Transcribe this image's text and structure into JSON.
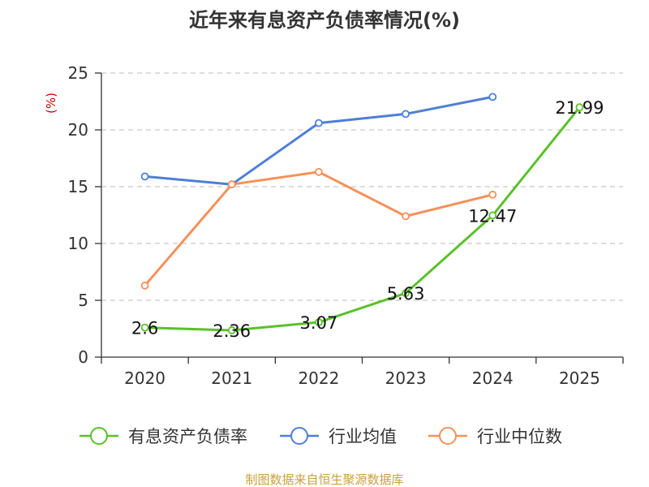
{
  "chart_data": {
    "type": "line",
    "title": "近年来有息资产负债率情况(%)",
    "ylabel": "(%)",
    "categories": [
      "2020",
      "2021",
      "2022",
      "2023",
      "2024",
      "2025"
    ],
    "ylim": [
      0,
      25
    ],
    "yticks": [
      0,
      5,
      10,
      15,
      20,
      25
    ],
    "grid": "horizontal-dashed",
    "legend_position": "bottom",
    "series": [
      {
        "name": "有息资产负债率",
        "color": "#5ac12b",
        "values": [
          2.6,
          2.36,
          3.07,
          5.63,
          12.47,
          21.99
        ],
        "labels": [
          "2.6",
          "2.36",
          "3.07",
          "5.63",
          "12.47",
          "21.99"
        ]
      },
      {
        "name": "行业均值",
        "color": "#4e7fd6",
        "values": [
          15.9,
          15.2,
          20.6,
          21.4,
          22.9,
          null
        ]
      },
      {
        "name": "行业中位数",
        "color": "#f5905a",
        "values": [
          6.3,
          15.2,
          16.3,
          12.4,
          14.3,
          null
        ]
      }
    ],
    "source": "制图数据来自恒生聚源数据库"
  }
}
